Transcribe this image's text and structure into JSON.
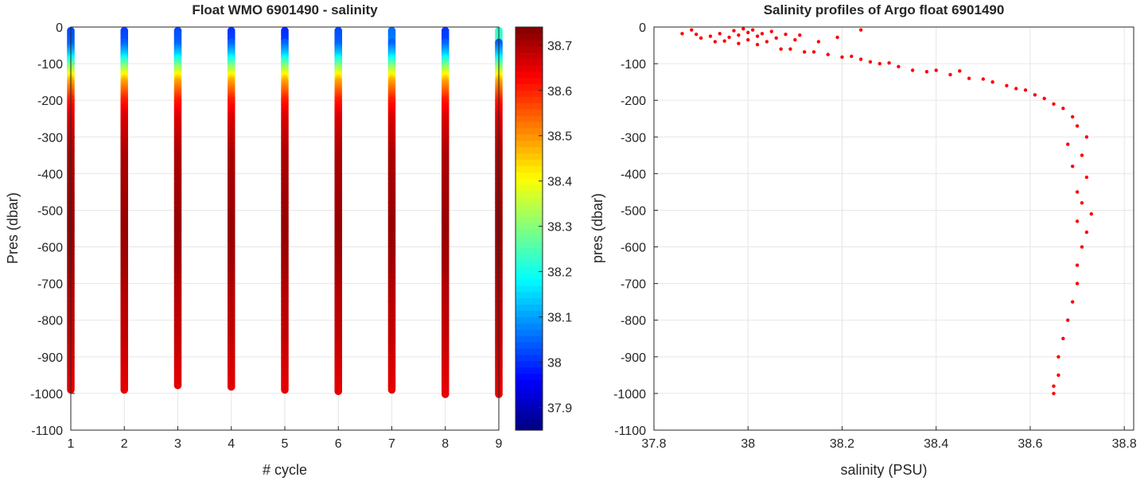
{
  "chart_data": [
    {
      "type": "scatter",
      "title": "Float WMO 6901490 - salinity",
      "xlabel": "# cycle",
      "ylabel": "Pres (dbar)",
      "xlim": [
        1,
        9
      ],
      "ylim": [
        -1100,
        0
      ],
      "xticks": [
        "1",
        "2",
        "3",
        "4",
        "5",
        "6",
        "7",
        "8",
        "9"
      ],
      "yticks": [
        "0",
        "-100",
        "-200",
        "-300",
        "-400",
        "-500",
        "-600",
        "-700",
        "-800",
        "-900",
        "-1000",
        "-1100"
      ],
      "grid": true,
      "colormap": "jet",
      "colorbar": {
        "range": [
          37.85,
          38.74
        ],
        "ticks": [
          "37.9",
          "38",
          "38.1",
          "38.2",
          "38.3",
          "38.4",
          "38.5",
          "38.6",
          "38.7"
        ]
      },
      "series": [
        {
          "cycle": 1,
          "pres_min": -10,
          "pres_max": -992,
          "surface_salinity": 38.02
        },
        {
          "cycle": 2,
          "pres_min": -10,
          "pres_max": -990,
          "surface_salinity": 38.01
        },
        {
          "cycle": 3,
          "pres_min": -10,
          "pres_max": -980,
          "surface_salinity": 38.02
        },
        {
          "cycle": 4,
          "pres_min": -10,
          "pres_max": -982,
          "surface_salinity": 38.0
        },
        {
          "cycle": 5,
          "pres_min": -10,
          "pres_max": -990,
          "surface_salinity": 37.99
        },
        {
          "cycle": 6,
          "pres_min": -10,
          "pres_max": -995,
          "surface_salinity": 38.02
        },
        {
          "cycle": 7,
          "pres_min": -10,
          "pres_max": -992,
          "surface_salinity": 38.05
        },
        {
          "cycle": 8,
          "pres_min": -10,
          "pres_max": -1002,
          "surface_salinity": 38.0
        },
        {
          "cycle": 9,
          "pres_min": -10,
          "pres_max": -1005,
          "surface_salinity": 38.22
        }
      ],
      "profile": [
        {
          "pres": 0,
          "sal": 38.0
        },
        {
          "pres": -50,
          "sal": 38.05
        },
        {
          "pres": -80,
          "sal": 38.15
        },
        {
          "pres": -110,
          "sal": 38.3
        },
        {
          "pres": -150,
          "sal": 38.48
        },
        {
          "pres": -200,
          "sal": 38.6
        },
        {
          "pres": -250,
          "sal": 38.66
        },
        {
          "pres": -350,
          "sal": 38.7
        },
        {
          "pres": -450,
          "sal": 38.71
        },
        {
          "pres": -550,
          "sal": 38.72
        },
        {
          "pres": -650,
          "sal": 38.71
        },
        {
          "pres": -750,
          "sal": 38.69
        },
        {
          "pres": -850,
          "sal": 38.68
        },
        {
          "pres": -950,
          "sal": 38.66
        },
        {
          "pres": -1005,
          "sal": 38.65
        }
      ]
    },
    {
      "type": "scatter",
      "title": "Salinity profiles of Argo float 6901490",
      "xlabel": "salinity (PSU)",
      "ylabel": "pres (dbar)",
      "xlim": [
        37.8,
        38.82
      ],
      "ylim": [
        -1100,
        0
      ],
      "xticks": [
        "37.8",
        "38",
        "38.2",
        "38.4",
        "38.6",
        "38.8"
      ],
      "yticks": [
        "0",
        "-100",
        "-200",
        "-300",
        "-400",
        "-500",
        "-600",
        "-700",
        "-800",
        "-900",
        "-1000",
        "-1100"
      ],
      "grid": true,
      "marker_color": "#ff0000",
      "points": [
        {
          "x": 37.86,
          "y": -18
        },
        {
          "x": 37.88,
          "y": -8
        },
        {
          "x": 37.89,
          "y": -20
        },
        {
          "x": 37.9,
          "y": -30
        },
        {
          "x": 37.92,
          "y": -25
        },
        {
          "x": 37.93,
          "y": -40
        },
        {
          "x": 37.94,
          "y": -18
        },
        {
          "x": 37.95,
          "y": -38
        },
        {
          "x": 37.96,
          "y": -28
        },
        {
          "x": 37.97,
          "y": -10
        },
        {
          "x": 37.98,
          "y": -22
        },
        {
          "x": 37.98,
          "y": -45
        },
        {
          "x": 37.99,
          "y": -5
        },
        {
          "x": 38.0,
          "y": -15
        },
        {
          "x": 38.0,
          "y": -35
        },
        {
          "x": 38.01,
          "y": -8
        },
        {
          "x": 38.02,
          "y": -25
        },
        {
          "x": 38.02,
          "y": -48
        },
        {
          "x": 38.03,
          "y": -18
        },
        {
          "x": 38.04,
          "y": -40
        },
        {
          "x": 38.05,
          "y": -12
        },
        {
          "x": 38.06,
          "y": -30
        },
        {
          "x": 38.07,
          "y": -60
        },
        {
          "x": 38.08,
          "y": -20
        },
        {
          "x": 38.09,
          "y": -60
        },
        {
          "x": 38.1,
          "y": -35
        },
        {
          "x": 38.11,
          "y": -22
        },
        {
          "x": 38.12,
          "y": -68
        },
        {
          "x": 38.14,
          "y": -68
        },
        {
          "x": 38.15,
          "y": -40
        },
        {
          "x": 38.17,
          "y": -75
        },
        {
          "x": 38.19,
          "y": -28
        },
        {
          "x": 38.2,
          "y": -82
        },
        {
          "x": 38.22,
          "y": -80
        },
        {
          "x": 38.24,
          "y": -8
        },
        {
          "x": 38.24,
          "y": -88
        },
        {
          "x": 38.26,
          "y": -95
        },
        {
          "x": 38.28,
          "y": -100
        },
        {
          "x": 38.3,
          "y": -98
        },
        {
          "x": 38.32,
          "y": -108
        },
        {
          "x": 38.35,
          "y": -118
        },
        {
          "x": 38.38,
          "y": -122
        },
        {
          "x": 38.4,
          "y": -118
        },
        {
          "x": 38.43,
          "y": -130
        },
        {
          "x": 38.45,
          "y": -120
        },
        {
          "x": 38.47,
          "y": -140
        },
        {
          "x": 38.5,
          "y": -142
        },
        {
          "x": 38.52,
          "y": -150
        },
        {
          "x": 38.55,
          "y": -160
        },
        {
          "x": 38.57,
          "y": -168
        },
        {
          "x": 38.59,
          "y": -172
        },
        {
          "x": 38.61,
          "y": -185
        },
        {
          "x": 38.63,
          "y": -195
        },
        {
          "x": 38.65,
          "y": -210
        },
        {
          "x": 38.67,
          "y": -222
        },
        {
          "x": 38.69,
          "y": -245
        },
        {
          "x": 38.7,
          "y": -270
        },
        {
          "x": 38.72,
          "y": -300
        },
        {
          "x": 38.68,
          "y": -320
        },
        {
          "x": 38.71,
          "y": -350
        },
        {
          "x": 38.69,
          "y": -380
        },
        {
          "x": 38.72,
          "y": -410
        },
        {
          "x": 38.7,
          "y": -450
        },
        {
          "x": 38.71,
          "y": -480
        },
        {
          "x": 38.73,
          "y": -510
        },
        {
          "x": 38.7,
          "y": -530
        },
        {
          "x": 38.72,
          "y": -560
        },
        {
          "x": 38.71,
          "y": -600
        },
        {
          "x": 38.7,
          "y": -650
        },
        {
          "x": 38.7,
          "y": -700
        },
        {
          "x": 38.69,
          "y": -750
        },
        {
          "x": 38.68,
          "y": -800
        },
        {
          "x": 38.67,
          "y": -850
        },
        {
          "x": 38.66,
          "y": -900
        },
        {
          "x": 38.66,
          "y": -950
        },
        {
          "x": 38.65,
          "y": -980
        },
        {
          "x": 38.65,
          "y": -1000
        }
      ]
    }
  ]
}
